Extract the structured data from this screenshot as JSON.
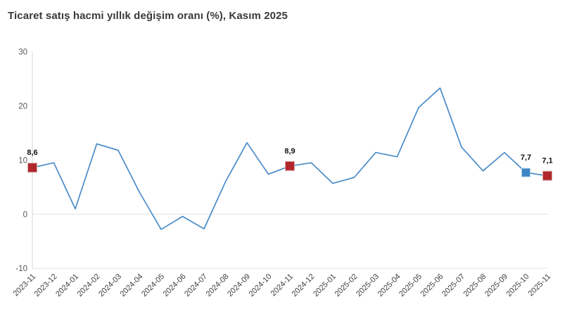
{
  "page": {
    "background": "#ffffff"
  },
  "chart_data": {
    "type": "line",
    "title": "Ticaret satış hacmi yıllık değişim oranı (%), Kasım 2025",
    "categories": [
      "2023-11",
      "2023-12",
      "2024-01",
      "2024-02",
      "2024-03",
      "2024-04",
      "2024-05",
      "2024-06",
      "2024-07",
      "2024-08",
      "2024-09",
      "2024-10",
      "2024-11",
      "2024-12",
      "2025-01",
      "2025-02",
      "2025-03",
      "2025-04",
      "2025-05",
      "2025-06",
      "2025-07",
      "2025-08",
      "2025-09",
      "2025-10",
      "2025-11"
    ],
    "values": [
      8.6,
      9.5,
      1.0,
      13.0,
      11.8,
      4.0,
      -2.8,
      -0.4,
      -2.7,
      6.0,
      13.2,
      7.4,
      8.9,
      9.5,
      5.7,
      6.8,
      11.4,
      10.6,
      19.7,
      23.3,
      12.4,
      8.0,
      11.4,
      7.7,
      7.1
    ],
    "ylim": [
      -10,
      30
    ],
    "yticks": [
      30,
      20,
      10,
      0,
      -10
    ],
    "gridlines_at": [
      0,
      -10
    ],
    "xlabel": "",
    "ylabel": "",
    "legend_position": "none",
    "marked_points": [
      {
        "category": "2023-11",
        "index": 0,
        "label": "8,6",
        "marker": "red"
      },
      {
        "category": "2024-11",
        "index": 12,
        "label": "8,9",
        "marker": "red"
      },
      {
        "category": "2025-10",
        "index": 23,
        "label": "7,7",
        "marker": "blue"
      },
      {
        "category": "2025-11",
        "index": 24,
        "label": "7,1",
        "marker": "red"
      }
    ],
    "colors": {
      "line": "#4a8cc8",
      "grid": "#e6e6e6",
      "axis": "#d6d6d6",
      "y_tick_label": "#595959",
      "x_tick_label": "#3f3f3f",
      "point_label": "#111111",
      "title": "#3a3a3a",
      "marker_red": "#b2272c",
      "marker_red_border": "#d9a9ab",
      "marker_blue": "#3d86c5",
      "marker_blue_border": "#a9cce8"
    }
  }
}
